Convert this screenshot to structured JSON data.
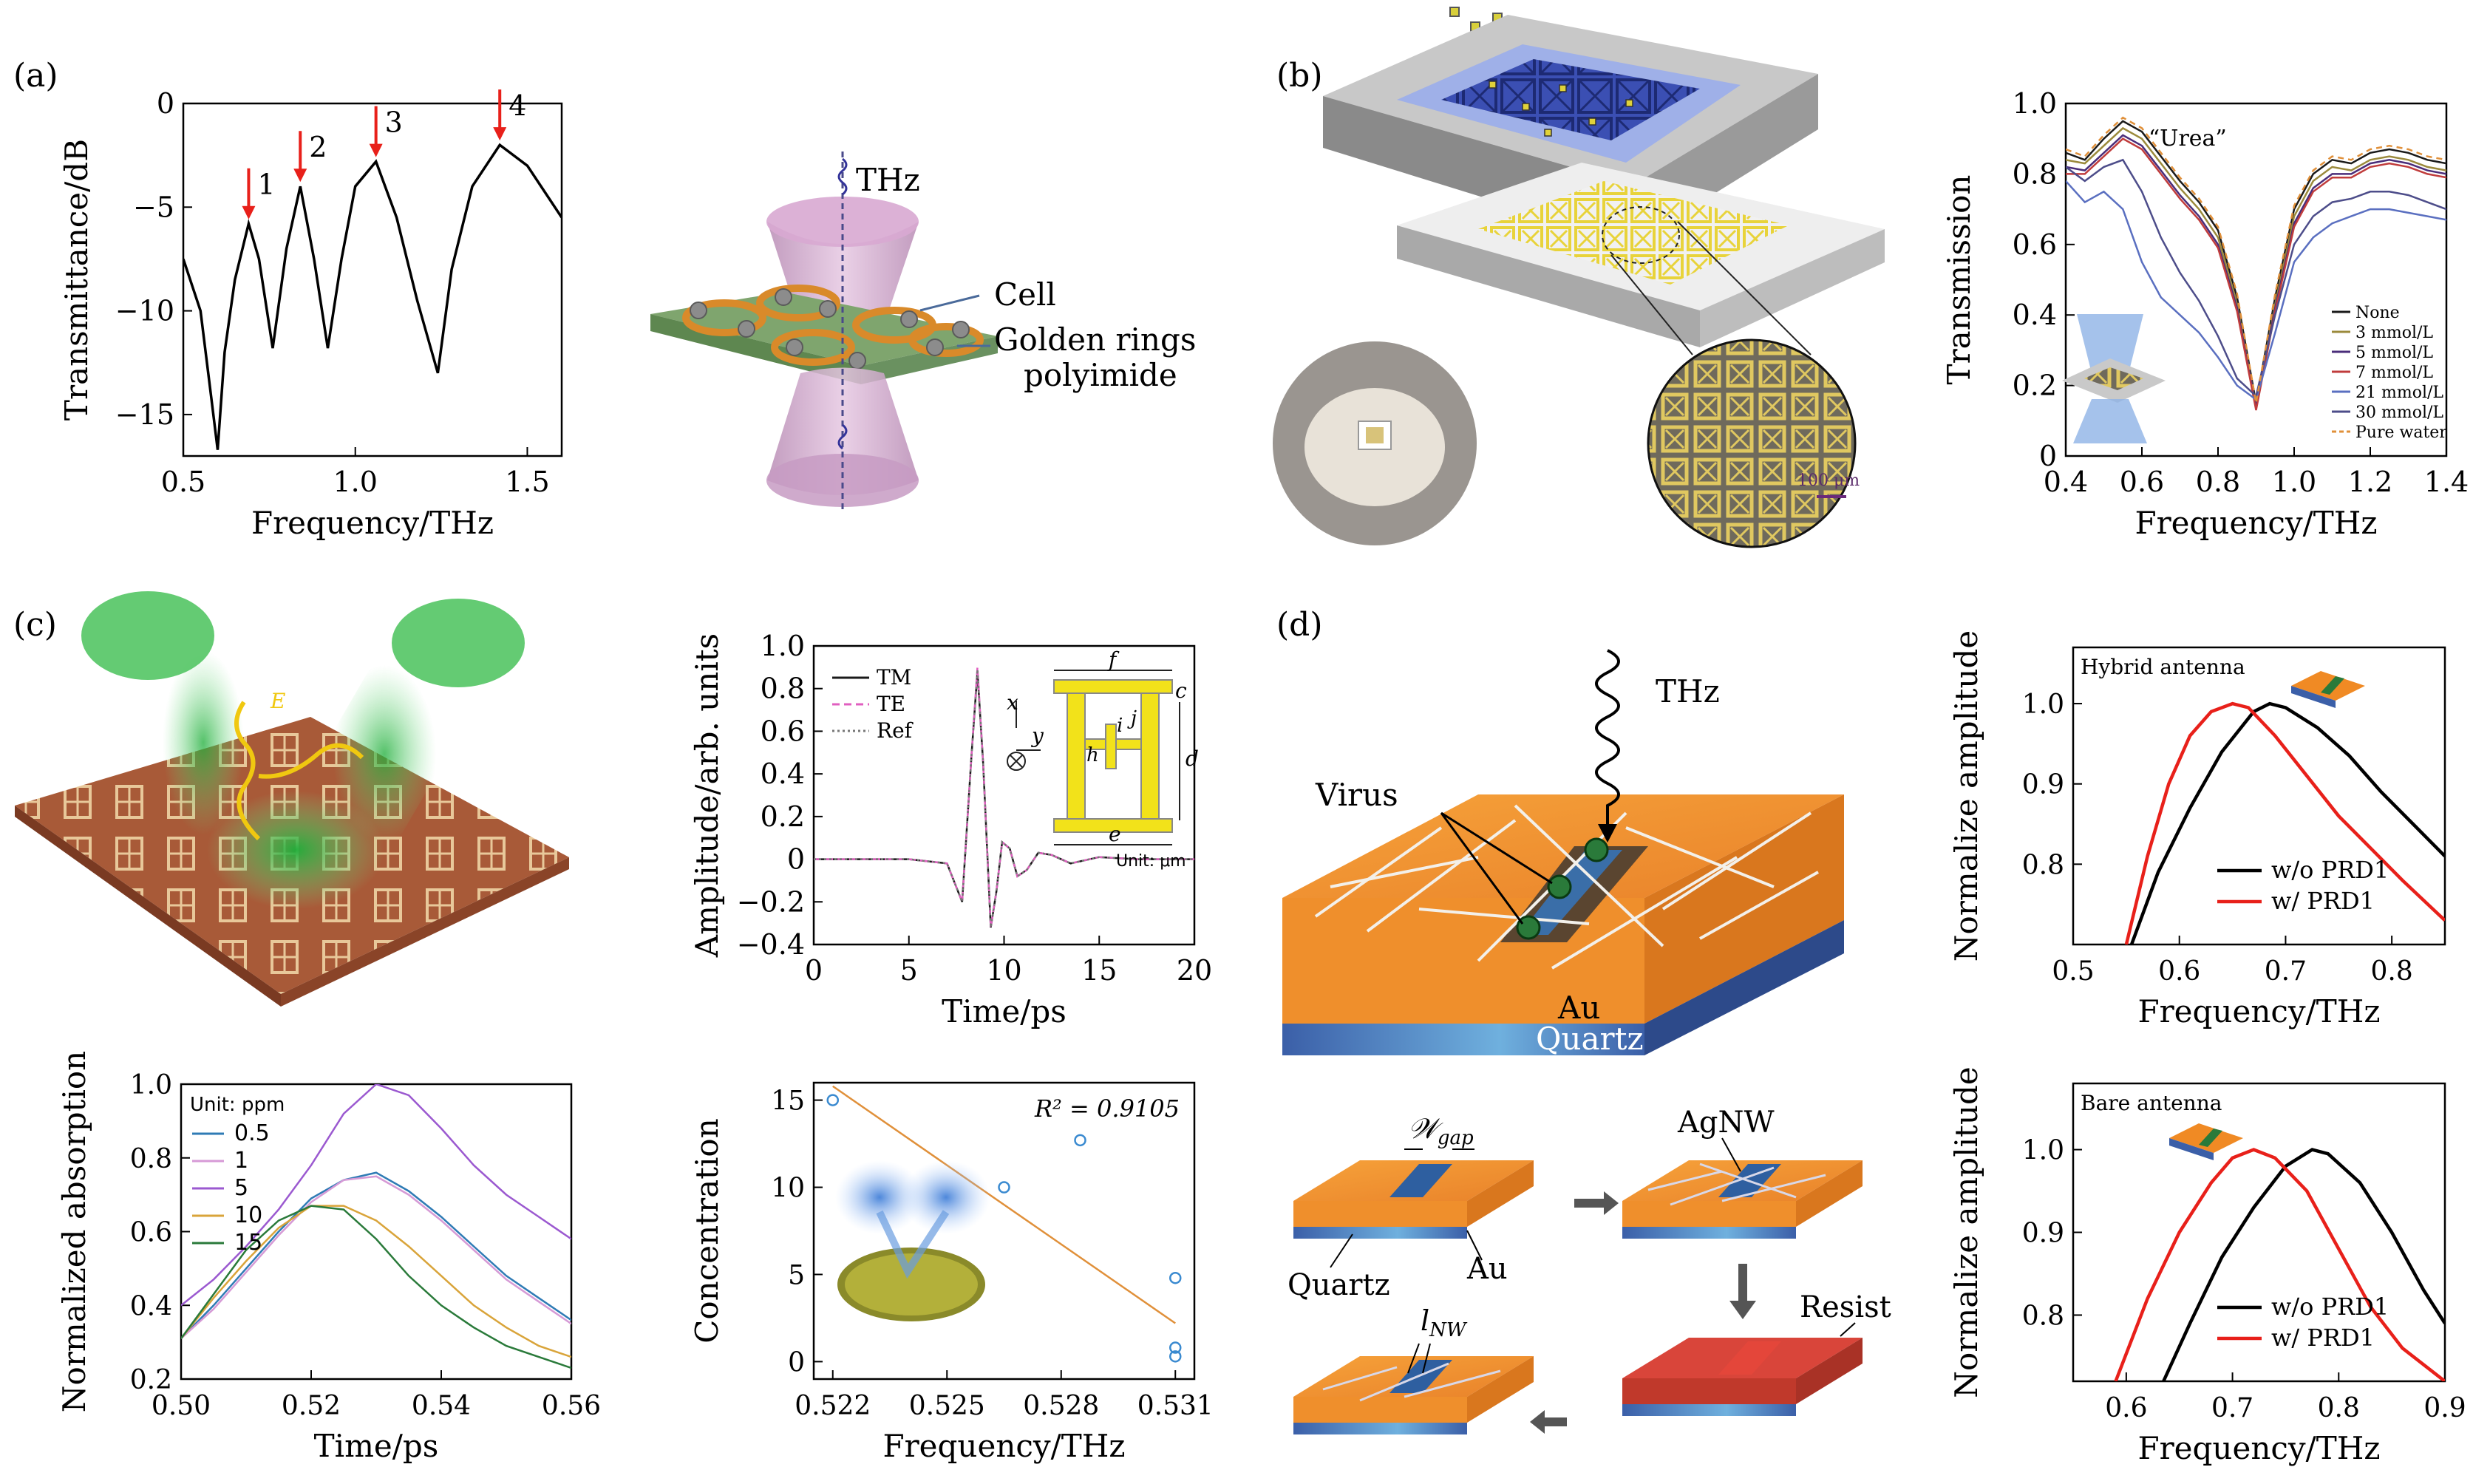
{
  "panels": {
    "a": {
      "letter": "(a)",
      "cell": "Cell",
      "rings": "Golden rings",
      "polyimide": "polyimide",
      "thz": "THz"
    },
    "b": {
      "letter": "(b)",
      "scale": "100 μm"
    },
    "c": {
      "letter": "(c)",
      "unit_top": "Unit: μm",
      "dim": {
        "f": "f",
        "c": "c",
        "i": "i",
        "j": "j",
        "h": "h",
        "d": "d",
        "e": "e",
        "x": "x",
        "y": "y"
      },
      "e_field": "E"
    },
    "d": {
      "letter": "(d)",
      "thz": "THz",
      "virus": "Virus",
      "au": "Au",
      "quartz": "Quartz",
      "wgap": "𝒲",
      "wgap_sub": "gap",
      "agnw": "AgNW",
      "au2": "Au",
      "quartz2": "Quartz",
      "resist": "Resist",
      "lnw": "l",
      "lnw_sub": "NW"
    }
  },
  "colors": {
    "red": "#e8201a",
    "black": "#000000",
    "orange": "#f08a24",
    "blue_bar": "#3a6aa8"
  },
  "chart_data": [
    {
      "id": "a",
      "type": "line",
      "xlabel": "Frequency/THz",
      "ylabel": "Transmittance/dB",
      "xlim": [
        0.5,
        1.6
      ],
      "ylim": [
        -17,
        0
      ],
      "xticks": [
        0.5,
        1.0,
        1.5
      ],
      "yticks": [
        0,
        -5,
        -10,
        -15
      ],
      "xtick_labels": [
        "0.5",
        "1.0",
        "1.5"
      ],
      "ytick_labels": [
        "0",
        "−5",
        "−10",
        "−15"
      ],
      "series": [
        {
          "x": [
            0.5,
            0.55,
            0.58,
            0.6,
            0.62,
            0.65,
            0.69,
            0.72,
            0.76,
            0.8,
            0.84,
            0.88,
            0.92,
            0.96,
            1.0,
            1.06,
            1.12,
            1.18,
            1.24,
            1.28,
            1.34,
            1.42,
            1.5,
            1.6
          ],
          "y": [
            -7.5,
            -10,
            -14,
            -16.7,
            -12,
            -8.5,
            -5.8,
            -7.5,
            -11.8,
            -7,
            -4,
            -7.5,
            -11.8,
            -7.5,
            -4,
            -2.8,
            -5.5,
            -9.5,
            -13,
            -8,
            -4,
            -2,
            -3,
            -5.5
          ],
          "color": "#000000"
        }
      ],
      "annotations": [
        {
          "text": "1",
          "x": 0.69,
          "y": -5.8
        },
        {
          "text": "2",
          "x": 0.84,
          "y": -4
        },
        {
          "text": "3",
          "x": 1.06,
          "y": -2.8
        },
        {
          "text": "4",
          "x": 1.42,
          "y": -2
        }
      ]
    },
    {
      "id": "b",
      "type": "line",
      "title": "“Urea”",
      "xlabel": "Frequency/THz",
      "ylabel": "Transmission",
      "xlim": [
        0.4,
        1.4
      ],
      "ylim": [
        0,
        1.0
      ],
      "xticks": [
        0.4,
        0.6,
        0.8,
        1.0,
        1.2,
        1.4
      ],
      "yticks": [
        0,
        0.2,
        0.4,
        0.6,
        0.8,
        1.0
      ],
      "xtick_labels": [
        "0.4",
        "0.6",
        "0.8",
        "1.0",
        "1.2",
        "1.4"
      ],
      "ytick_labels": [
        "0",
        "0.2",
        "0.4",
        "0.6",
        "0.8",
        "1.0"
      ],
      "x": [
        0.4,
        0.45,
        0.5,
        0.55,
        0.6,
        0.65,
        0.7,
        0.75,
        0.8,
        0.85,
        0.9,
        0.95,
        1.0,
        1.05,
        1.1,
        1.15,
        1.2,
        1.25,
        1.3,
        1.35,
        1.4
      ],
      "series": [
        {
          "name": "None",
          "color": "#1a1a1a",
          "dash": "",
          "y": [
            0.86,
            0.84,
            0.9,
            0.95,
            0.92,
            0.85,
            0.78,
            0.72,
            0.64,
            0.45,
            0.15,
            0.45,
            0.7,
            0.8,
            0.84,
            0.83,
            0.86,
            0.87,
            0.86,
            0.84,
            0.83
          ]
        },
        {
          "name": "3 mmol/L",
          "color": "#9b8a3c",
          "dash": "",
          "y": [
            0.84,
            0.83,
            0.88,
            0.93,
            0.9,
            0.83,
            0.76,
            0.7,
            0.62,
            0.43,
            0.14,
            0.43,
            0.68,
            0.78,
            0.82,
            0.81,
            0.84,
            0.85,
            0.84,
            0.82,
            0.81
          ]
        },
        {
          "name": "5 mmol/L",
          "color": "#4a2d7a",
          "dash": "",
          "y": [
            0.82,
            0.81,
            0.86,
            0.91,
            0.88,
            0.81,
            0.74,
            0.68,
            0.6,
            0.42,
            0.14,
            0.42,
            0.66,
            0.76,
            0.8,
            0.8,
            0.83,
            0.84,
            0.83,
            0.81,
            0.8
          ]
        },
        {
          "name": "7 mmol/L",
          "color": "#c03c3c",
          "dash": "",
          "y": [
            0.8,
            0.8,
            0.85,
            0.9,
            0.87,
            0.8,
            0.73,
            0.67,
            0.59,
            0.41,
            0.13,
            0.41,
            0.65,
            0.75,
            0.79,
            0.79,
            0.82,
            0.83,
            0.82,
            0.8,
            0.79
          ]
        },
        {
          "name": "21 mmol/L",
          "color": "#5a6fc0",
          "dash": "",
          "y": [
            0.78,
            0.72,
            0.75,
            0.7,
            0.55,
            0.45,
            0.4,
            0.35,
            0.28,
            0.2,
            0.16,
            0.35,
            0.55,
            0.62,
            0.66,
            0.68,
            0.7,
            0.7,
            0.69,
            0.68,
            0.67
          ]
        },
        {
          "name": "30 mmol/L",
          "color": "#4d4d8a",
          "dash": "",
          "y": [
            0.82,
            0.78,
            0.82,
            0.84,
            0.75,
            0.62,
            0.52,
            0.44,
            0.34,
            0.22,
            0.17,
            0.4,
            0.6,
            0.68,
            0.72,
            0.73,
            0.75,
            0.75,
            0.74,
            0.72,
            0.7
          ]
        },
        {
          "name": "Pure water",
          "color": "#e0903a",
          "dash": "8,6",
          "y": [
            0.87,
            0.85,
            0.91,
            0.96,
            0.93,
            0.86,
            0.79,
            0.73,
            0.65,
            0.46,
            0.15,
            0.46,
            0.71,
            0.81,
            0.85,
            0.84,
            0.87,
            0.88,
            0.87,
            0.85,
            0.84
          ]
        }
      ]
    },
    {
      "id": "c-time",
      "type": "line",
      "xlabel": "Time/ps",
      "ylabel": "Amplitude/arb. units",
      "xlim": [
        0,
        20
      ],
      "ylim": [
        -0.4,
        1.0
      ],
      "xticks": [
        0,
        5,
        10,
        15,
        20
      ],
      "yticks": [
        -0.4,
        -0.2,
        0,
        0.2,
        0.4,
        0.6,
        0.8,
        1.0
      ],
      "xtick_labels": [
        "0",
        "5",
        "10",
        "15",
        "20"
      ],
      "ytick_labels": [
        "−0.4",
        "−0.2",
        "0",
        "0.2",
        "0.4",
        "0.6",
        "0.8",
        "1.0"
      ],
      "x": [
        0,
        5,
        7,
        7.8,
        8.3,
        8.6,
        8.9,
        9.3,
        9.6,
        9.9,
        10.3,
        10.7,
        11.2,
        11.8,
        12.5,
        13.5,
        15,
        17,
        20
      ],
      "series": [
        {
          "name": "TM",
          "color": "#1a1a1a",
          "dash": "",
          "y": [
            0,
            0,
            -0.02,
            -0.2,
            0.5,
            0.88,
            0.45,
            -0.32,
            -0.15,
            0.08,
            0.05,
            -0.08,
            -0.05,
            0.03,
            0.02,
            -0.02,
            0.01,
            0,
            0
          ]
        },
        {
          "name": "TE",
          "color": "#e05fc0",
          "dash": "10,6",
          "y": [
            0,
            0,
            -0.02,
            -0.2,
            0.5,
            0.9,
            0.45,
            -0.32,
            -0.15,
            0.08,
            0.05,
            -0.08,
            -0.05,
            0.03,
            0.02,
            -0.02,
            0.01,
            0,
            0
          ]
        },
        {
          "name": "Ref",
          "color": "#777777",
          "dash": "3,4",
          "y": [
            0,
            0,
            -0.02,
            -0.2,
            0.5,
            0.89,
            0.45,
            -0.32,
            -0.15,
            0.08,
            0.05,
            -0.08,
            -0.05,
            0.03,
            0.02,
            -0.02,
            0.01,
            0,
            0
          ]
        }
      ]
    },
    {
      "id": "c-abs",
      "type": "line",
      "title": "Unit: ppm",
      "xlabel": "Time/ps",
      "ylabel": "Normalized absorption",
      "xlim": [
        0.5,
        0.56
      ],
      "ylim": [
        0.2,
        1.0
      ],
      "xticks": [
        0.5,
        0.52,
        0.54,
        0.56
      ],
      "yticks": [
        0.2,
        0.4,
        0.6,
        0.8,
        1.0
      ],
      "xtick_labels": [
        "0.50",
        "0.52",
        "0.54",
        "0.56"
      ],
      "ytick_labels": [
        "0.2",
        "0.4",
        "0.6",
        "0.8",
        "1.0"
      ],
      "x": [
        0.5,
        0.505,
        0.51,
        0.515,
        0.52,
        0.525,
        0.53,
        0.535,
        0.54,
        0.545,
        0.55,
        0.555,
        0.56
      ],
      "series": [
        {
          "name": "0.5",
          "color": "#2f7bb5",
          "y": [
            0.31,
            0.4,
            0.5,
            0.6,
            0.69,
            0.74,
            0.76,
            0.71,
            0.64,
            0.56,
            0.48,
            0.42,
            0.36
          ]
        },
        {
          "name": "1",
          "color": "#d69ad6",
          "y": [
            0.31,
            0.39,
            0.49,
            0.59,
            0.68,
            0.74,
            0.75,
            0.7,
            0.63,
            0.55,
            0.47,
            0.41,
            0.35
          ]
        },
        {
          "name": "5",
          "color": "#9b59d0",
          "y": [
            0.4,
            0.47,
            0.56,
            0.66,
            0.78,
            0.92,
            1.0,
            0.97,
            0.88,
            0.78,
            0.7,
            0.64,
            0.58
          ]
        },
        {
          "name": "10",
          "color": "#d9a43a",
          "y": [
            0.31,
            0.42,
            0.52,
            0.61,
            0.67,
            0.67,
            0.63,
            0.56,
            0.48,
            0.4,
            0.34,
            0.29,
            0.26
          ]
        },
        {
          "name": "15",
          "color": "#2a7a3a",
          "y": [
            0.31,
            0.43,
            0.55,
            0.63,
            0.67,
            0.66,
            0.58,
            0.48,
            0.4,
            0.34,
            0.29,
            0.26,
            0.23
          ]
        }
      ]
    },
    {
      "id": "c-conc",
      "type": "scatter",
      "xlabel": "Frequency/THz",
      "ylabel": "Concentration",
      "annotation": "R² = 0.9105",
      "xlim": [
        0.5215,
        0.5315
      ],
      "ylim": [
        -1,
        16
      ],
      "xticks": [
        0.522,
        0.525,
        0.528,
        0.531
      ],
      "yticks": [
        0,
        5,
        10,
        15
      ],
      "xtick_labels": [
        "0.522",
        "0.525",
        "0.528",
        "0.531"
      ],
      "ytick_labels": [
        "0",
        "5",
        "10",
        "15"
      ],
      "points": [
        {
          "x": 0.522,
          "y": 15
        },
        {
          "x": 0.5265,
          "y": 10
        },
        {
          "x": 0.5285,
          "y": 12.7
        },
        {
          "x": 0.531,
          "y": 4.8
        },
        {
          "x": 0.531,
          "y": 0.8
        },
        {
          "x": 0.531,
          "y": 0.3
        }
      ],
      "fit": [
        {
          "x": 0.522,
          "y": 15.8
        },
        {
          "x": 0.531,
          "y": 2.2
        }
      ]
    },
    {
      "id": "d-hybrid",
      "type": "line",
      "title": "Hybrid antenna",
      "xlabel": "Frequency/THz",
      "ylabel": "Normalize amplitude",
      "xlim": [
        0.5,
        0.85
      ],
      "ylim": [
        0.7,
        1.07
      ],
      "xticks": [
        0.5,
        0.6,
        0.7,
        0.8
      ],
      "yticks": [
        0.8,
        0.9,
        1.0
      ],
      "xtick_labels": [
        "0.5",
        "0.6",
        "0.7",
        "0.8"
      ],
      "ytick_labels": [
        "0.8",
        "0.9",
        "1.0"
      ],
      "series": [
        {
          "name": "w/o  PRD1",
          "color": "#000000",
          "x": [
            0.555,
            0.58,
            0.61,
            0.64,
            0.67,
            0.685,
            0.7,
            0.73,
            0.76,
            0.79,
            0.82,
            0.85
          ],
          "y": [
            0.7,
            0.79,
            0.87,
            0.94,
            0.99,
            1.0,
            0.995,
            0.97,
            0.935,
            0.89,
            0.85,
            0.81
          ]
        },
        {
          "name": "w/   PRD1",
          "color": "#e8201a",
          "x": [
            0.55,
            0.57,
            0.59,
            0.61,
            0.63,
            0.65,
            0.665,
            0.69,
            0.72,
            0.75,
            0.78,
            0.81,
            0.85
          ],
          "y": [
            0.7,
            0.81,
            0.9,
            0.96,
            0.99,
            1.0,
            0.995,
            0.96,
            0.91,
            0.86,
            0.82,
            0.78,
            0.73
          ]
        }
      ]
    },
    {
      "id": "d-bare",
      "type": "line",
      "title": "Bare antenna",
      "xlabel": "Frequency/THz",
      "ylabel": "Normalize amplitude",
      "xlim": [
        0.55,
        0.9
      ],
      "ylim": [
        0.72,
        1.08
      ],
      "xticks": [
        0.6,
        0.7,
        0.8,
        0.9
      ],
      "yticks": [
        0.8,
        0.9,
        1.0
      ],
      "xtick_labels": [
        "0.6",
        "0.7",
        "0.8",
        "0.9"
      ],
      "ytick_labels": [
        "0.8",
        "0.9",
        "1.0"
      ],
      "series": [
        {
          "name": "w/o PRD1",
          "color": "#000000",
          "x": [
            0.635,
            0.66,
            0.69,
            0.72,
            0.75,
            0.775,
            0.79,
            0.82,
            0.85,
            0.88,
            0.9
          ],
          "y": [
            0.72,
            0.79,
            0.87,
            0.93,
            0.98,
            1.0,
            0.995,
            0.96,
            0.9,
            0.83,
            0.79
          ]
        },
        {
          "name": "w/   PRD1",
          "color": "#e8201a",
          "x": [
            0.59,
            0.62,
            0.65,
            0.68,
            0.7,
            0.72,
            0.74,
            0.77,
            0.8,
            0.83,
            0.86,
            0.9
          ],
          "y": [
            0.72,
            0.82,
            0.9,
            0.96,
            0.99,
            1.0,
            0.99,
            0.95,
            0.88,
            0.81,
            0.76,
            0.72
          ]
        }
      ]
    }
  ]
}
